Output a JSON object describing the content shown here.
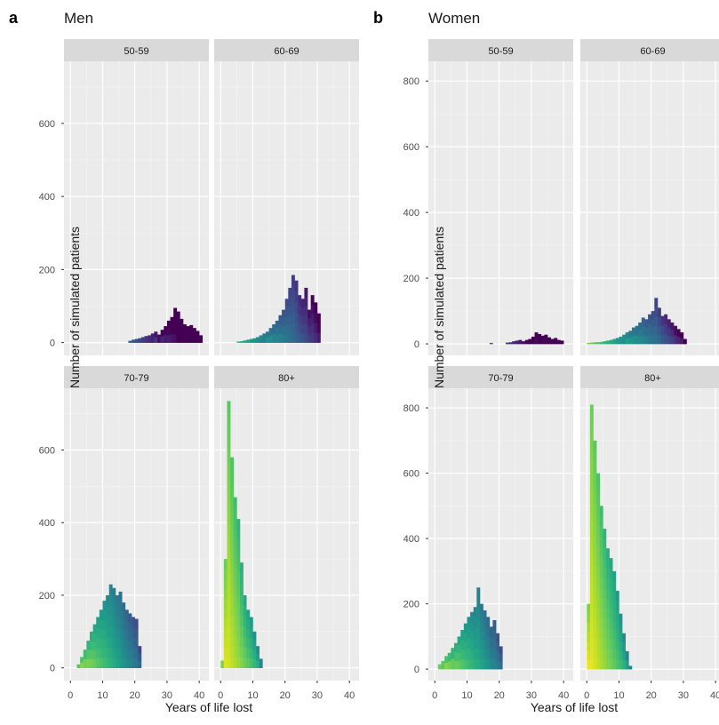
{
  "figure": {
    "panels": [
      {
        "letter": "a",
        "title": "Men"
      },
      {
        "letter": "b",
        "title": "Women"
      }
    ]
  },
  "chart_data": [
    {
      "type": "bar",
      "chart_subtype": "faceted histogram",
      "panel_letter": "a",
      "title": "Men",
      "xlabel": "Years of life lost",
      "ylabel": "Number of simulated patients",
      "xlim": [
        -2,
        43
      ],
      "ylim": [
        -35,
        770
      ],
      "x_ticks": [
        0,
        10,
        20,
        30,
        40
      ],
      "y_ticks": [
        0,
        200,
        400,
        600
      ],
      "grid": true,
      "fill_palette": "viridis (bright yellow at low years to dark purple at high years)",
      "bin_width": 1,
      "facets": [
        {
          "label": "50-59",
          "bins": [
            {
              "x": 18,
              "y": 5
            },
            {
              "x": 19,
              "y": 8
            },
            {
              "x": 20,
              "y": 10
            },
            {
              "x": 21,
              "y": 12
            },
            {
              "x": 22,
              "y": 15
            },
            {
              "x": 23,
              "y": 18
            },
            {
              "x": 24,
              "y": 20
            },
            {
              "x": 25,
              "y": 25
            },
            {
              "x": 26,
              "y": 30
            },
            {
              "x": 27,
              "y": 22
            },
            {
              "x": 28,
              "y": 35
            },
            {
              "x": 29,
              "y": 45
            },
            {
              "x": 30,
              "y": 60
            },
            {
              "x": 31,
              "y": 70
            },
            {
              "x": 32,
              "y": 95
            },
            {
              "x": 33,
              "y": 85
            },
            {
              "x": 34,
              "y": 65
            },
            {
              "x": 35,
              "y": 50
            },
            {
              "x": 36,
              "y": 45
            },
            {
              "x": 37,
              "y": 48
            },
            {
              "x": 38,
              "y": 40
            },
            {
              "x": 39,
              "y": 32
            },
            {
              "x": 40,
              "y": 20
            }
          ]
        },
        {
          "label": "60-69",
          "bins": [
            {
              "x": 5,
              "y": 3
            },
            {
              "x": 6,
              "y": 4
            },
            {
              "x": 7,
              "y": 6
            },
            {
              "x": 8,
              "y": 8
            },
            {
              "x": 9,
              "y": 10
            },
            {
              "x": 10,
              "y": 12
            },
            {
              "x": 11,
              "y": 15
            },
            {
              "x": 12,
              "y": 20
            },
            {
              "x": 13,
              "y": 25
            },
            {
              "x": 14,
              "y": 30
            },
            {
              "x": 15,
              "y": 40
            },
            {
              "x": 16,
              "y": 50
            },
            {
              "x": 17,
              "y": 60
            },
            {
              "x": 18,
              "y": 75
            },
            {
              "x": 19,
              "y": 90
            },
            {
              "x": 20,
              "y": 120
            },
            {
              "x": 21,
              "y": 150
            },
            {
              "x": 22,
              "y": 185
            },
            {
              "x": 23,
              "y": 170
            },
            {
              "x": 24,
              "y": 130
            },
            {
              "x": 25,
              "y": 120
            },
            {
              "x": 26,
              "y": 150
            },
            {
              "x": 27,
              "y": 90
            },
            {
              "x": 28,
              "y": 130
            },
            {
              "x": 29,
              "y": 110
            },
            {
              "x": 30,
              "y": 80
            }
          ]
        },
        {
          "label": "70-79",
          "bins": [
            {
              "x": 2,
              "y": 10
            },
            {
              "x": 3,
              "y": 30
            },
            {
              "x": 4,
              "y": 50
            },
            {
              "x": 5,
              "y": 75
            },
            {
              "x": 6,
              "y": 100
            },
            {
              "x": 7,
              "y": 120
            },
            {
              "x": 8,
              "y": 140
            },
            {
              "x": 9,
              "y": 160
            },
            {
              "x": 10,
              "y": 185
            },
            {
              "x": 11,
              "y": 200
            },
            {
              "x": 12,
              "y": 230
            },
            {
              "x": 13,
              "y": 220
            },
            {
              "x": 14,
              "y": 200
            },
            {
              "x": 15,
              "y": 210
            },
            {
              "x": 16,
              "y": 180
            },
            {
              "x": 17,
              "y": 160
            },
            {
              "x": 18,
              "y": 150
            },
            {
              "x": 19,
              "y": 140
            },
            {
              "x": 20,
              "y": 135
            },
            {
              "x": 21,
              "y": 60
            }
          ]
        },
        {
          "label": "80+",
          "bins": [
            {
              "x": 0,
              "y": 20
            },
            {
              "x": 1,
              "y": 300
            },
            {
              "x": 2,
              "y": 735
            },
            {
              "x": 3,
              "y": 580
            },
            {
              "x": 4,
              "y": 470
            },
            {
              "x": 5,
              "y": 410
            },
            {
              "x": 6,
              "y": 290
            },
            {
              "x": 7,
              "y": 200
            },
            {
              "x": 8,
              "y": 160
            },
            {
              "x": 9,
              "y": 140
            },
            {
              "x": 10,
              "y": 100
            },
            {
              "x": 11,
              "y": 60
            },
            {
              "x": 12,
              "y": 25
            }
          ]
        }
      ]
    },
    {
      "type": "bar",
      "chart_subtype": "faceted histogram",
      "panel_letter": "b",
      "title": "Women",
      "xlabel": "Years of life lost",
      "ylabel": "Number of simulated patients",
      "xlim": [
        -2,
        43
      ],
      "ylim": [
        -35,
        860
      ],
      "x_ticks": [
        0,
        10,
        20,
        30,
        40
      ],
      "y_ticks": [
        0,
        200,
        400,
        600,
        800
      ],
      "grid": true,
      "fill_palette": "viridis (bright yellow at low years to dark purple at high years)",
      "bin_width": 1,
      "facets": [
        {
          "label": "50-59",
          "bins": [
            {
              "x": 17,
              "y": 3
            },
            {
              "x": 22,
              "y": 4
            },
            {
              "x": 23,
              "y": 5
            },
            {
              "x": 24,
              "y": 8
            },
            {
              "x": 25,
              "y": 10
            },
            {
              "x": 26,
              "y": 12
            },
            {
              "x": 27,
              "y": 8
            },
            {
              "x": 28,
              "y": 12
            },
            {
              "x": 29,
              "y": 15
            },
            {
              "x": 30,
              "y": 22
            },
            {
              "x": 31,
              "y": 35
            },
            {
              "x": 32,
              "y": 30
            },
            {
              "x": 33,
              "y": 25
            },
            {
              "x": 34,
              "y": 28
            },
            {
              "x": 35,
              "y": 20
            },
            {
              "x": 36,
              "y": 15
            },
            {
              "x": 37,
              "y": 18
            },
            {
              "x": 38,
              "y": 12
            },
            {
              "x": 39,
              "y": 10
            }
          ]
        },
        {
          "label": "60-69",
          "bins": [
            {
              "x": 0,
              "y": 3
            },
            {
              "x": 1,
              "y": 4
            },
            {
              "x": 2,
              "y": 5
            },
            {
              "x": 3,
              "y": 5
            },
            {
              "x": 4,
              "y": 6
            },
            {
              "x": 5,
              "y": 8
            },
            {
              "x": 6,
              "y": 10
            },
            {
              "x": 7,
              "y": 12
            },
            {
              "x": 8,
              "y": 15
            },
            {
              "x": 9,
              "y": 18
            },
            {
              "x": 10,
              "y": 22
            },
            {
              "x": 11,
              "y": 28
            },
            {
              "x": 12,
              "y": 35
            },
            {
              "x": 13,
              "y": 40
            },
            {
              "x": 14,
              "y": 50
            },
            {
              "x": 15,
              "y": 55
            },
            {
              "x": 16,
              "y": 65
            },
            {
              "x": 17,
              "y": 80
            },
            {
              "x": 18,
              "y": 75
            },
            {
              "x": 19,
              "y": 90
            },
            {
              "x": 20,
              "y": 100
            },
            {
              "x": 21,
              "y": 140
            },
            {
              "x": 22,
              "y": 110
            },
            {
              "x": 23,
              "y": 85
            },
            {
              "x": 24,
              "y": 90
            },
            {
              "x": 25,
              "y": 75
            },
            {
              "x": 26,
              "y": 65
            },
            {
              "x": 27,
              "y": 55
            },
            {
              "x": 28,
              "y": 45
            },
            {
              "x": 29,
              "y": 35
            },
            {
              "x": 30,
              "y": 15
            }
          ]
        },
        {
          "label": "70-79",
          "bins": [
            {
              "x": 1,
              "y": 15
            },
            {
              "x": 2,
              "y": 25
            },
            {
              "x": 3,
              "y": 40
            },
            {
              "x": 4,
              "y": 50
            },
            {
              "x": 5,
              "y": 65
            },
            {
              "x": 6,
              "y": 80
            },
            {
              "x": 7,
              "y": 100
            },
            {
              "x": 8,
              "y": 120
            },
            {
              "x": 9,
              "y": 140
            },
            {
              "x": 10,
              "y": 160
            },
            {
              "x": 11,
              "y": 175
            },
            {
              "x": 12,
              "y": 190
            },
            {
              "x": 13,
              "y": 250
            },
            {
              "x": 14,
              "y": 200
            },
            {
              "x": 15,
              "y": 180
            },
            {
              "x": 16,
              "y": 160
            },
            {
              "x": 17,
              "y": 130
            },
            {
              "x": 18,
              "y": 150
            },
            {
              "x": 19,
              "y": 110
            },
            {
              "x": 20,
              "y": 70
            }
          ]
        },
        {
          "label": "80+",
          "bins": [
            {
              "x": 0,
              "y": 200
            },
            {
              "x": 1,
              "y": 810
            },
            {
              "x": 2,
              "y": 700
            },
            {
              "x": 3,
              "y": 600
            },
            {
              "x": 4,
              "y": 500
            },
            {
              "x": 5,
              "y": 430
            },
            {
              "x": 6,
              "y": 370
            },
            {
              "x": 7,
              "y": 340
            },
            {
              "x": 8,
              "y": 300
            },
            {
              "x": 9,
              "y": 240
            },
            {
              "x": 10,
              "y": 170
            },
            {
              "x": 11,
              "y": 110
            },
            {
              "x": 12,
              "y": 55
            },
            {
              "x": 13,
              "y": 10
            }
          ]
        }
      ]
    }
  ]
}
